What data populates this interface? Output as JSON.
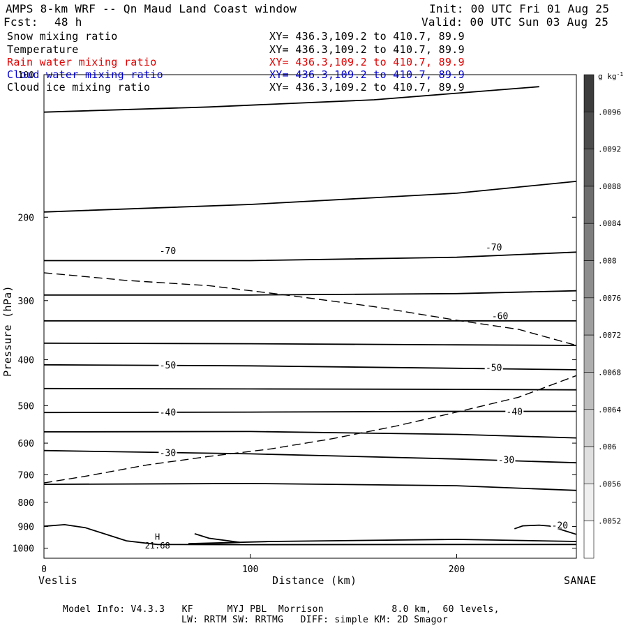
{
  "header": {
    "title": "AMPS 8-km WRF -- Qn Maud Land Coast window",
    "init": "Init: 00 UTC Fri 01 Aug 25",
    "fcst_label": "Fcst:",
    "fcst_value": "48 h",
    "valid": "Valid: 00 UTC Sun 03 Aug 25"
  },
  "fields": [
    {
      "name": "Snow mixing ratio",
      "xy": "XY= 436.3,109.2 to 410.7, 89.9",
      "color": "#000000"
    },
    {
      "name": "Temperature",
      "xy": "XY= 436.3,109.2 to 410.7, 89.9",
      "color": "#000000"
    },
    {
      "name": "Rain water mixing ratio",
      "xy": "XY= 436.3,109.2 to 410.7, 89.9",
      "color": "#e00000"
    },
    {
      "name": "Cloud water mixing ratio",
      "xy": "XY= 436.3,109.2 to 410.7, 89.9",
      "color": "#0000d0"
    },
    {
      "name": "Cloud ice mixing ratio",
      "xy": "XY= 436.3,109.2 to 410.7, 89.9",
      "color": "#000000"
    }
  ],
  "footer": {
    "line1": "Model Info: V4.3.3   KF      MYJ PBL  Morrison            8.0 km,  60 levels,",
    "line2": "LW: RRTM SW: RRTMG   DIFF: simple KM: 2D Smagor"
  },
  "chart_data": {
    "type": "line",
    "xlabel": "Distance (km)",
    "ylabel": "Pressure (hPa)",
    "xlim": [
      0,
      258
    ],
    "ylim": [
      1050,
      100
    ],
    "y_scale": "log",
    "x_ticks": [
      0,
      100,
      200
    ],
    "y_ticks": [
      100,
      200,
      300,
      400,
      500,
      600,
      700,
      800,
      900,
      1000
    ],
    "x_endpoints": {
      "left": "Veslis",
      "right": "SANAE"
    },
    "grid": false,
    "colorbar": {
      "unit": "g kg-1",
      "ticks": [
        ".0096",
        ".0092",
        ".0088",
        ".0084",
        ".008",
        ".0076",
        ".0072",
        ".0068",
        ".0064",
        ".006",
        ".0056",
        ".0052"
      ]
    },
    "isotherms": [
      {
        "label": "-70",
        "points": [
          [
            0,
            120
          ],
          [
            80,
            117
          ],
          [
            160,
            113
          ],
          [
            240,
            106
          ]
        ]
      },
      {
        "label": "",
        "points": [
          [
            0,
            195
          ],
          [
            100,
            188
          ],
          [
            200,
            178
          ],
          [
            258,
            168
          ]
        ]
      },
      {
        "label": "-70",
        "points": [
          [
            0,
            247
          ],
          [
            100,
            247
          ],
          [
            200,
            243
          ],
          [
            258,
            237
          ]
        ]
      },
      {
        "label": "",
        "points": [
          [
            0,
            292
          ],
          [
            100,
            292
          ],
          [
            200,
            290
          ],
          [
            258,
            286
          ]
        ]
      },
      {
        "label": "-60",
        "points": [
          [
            0,
            331
          ],
          [
            100,
            331
          ],
          [
            200,
            331
          ],
          [
            258,
            331
          ]
        ]
      },
      {
        "label": "",
        "points": [
          [
            0,
            369
          ],
          [
            100,
            370
          ],
          [
            200,
            372
          ],
          [
            258,
            373
          ]
        ]
      },
      {
        "label": "-50",
        "points": [
          [
            0,
            410
          ],
          [
            100,
            412
          ],
          [
            200,
            417
          ],
          [
            258,
            420
          ]
        ]
      },
      {
        "label": "",
        "points": [
          [
            0,
            460
          ],
          [
            100,
            461
          ],
          [
            200,
            462
          ],
          [
            258,
            463
          ]
        ]
      },
      {
        "label": "-40",
        "points": [
          [
            0,
            517
          ],
          [
            100,
            516
          ],
          [
            200,
            514
          ],
          [
            258,
            514
          ]
        ]
      },
      {
        "label": "",
        "points": [
          [
            0,
            568
          ],
          [
            100,
            567
          ],
          [
            200,
            575
          ],
          [
            258,
            585
          ]
        ]
      },
      {
        "label": "-30",
        "points": [
          [
            0,
            622
          ],
          [
            100,
            632
          ],
          [
            200,
            648
          ],
          [
            258,
            660
          ]
        ]
      },
      {
        "label": "",
        "points": [
          [
            0,
            733
          ],
          [
            100,
            730
          ],
          [
            200,
            738
          ],
          [
            258,
            755
          ]
        ]
      },
      {
        "label": "-20",
        "points": [
          [
            0,
            899
          ],
          [
            10,
            892
          ],
          [
            20,
            905
          ],
          [
            40,
            965
          ],
          [
            55,
            982
          ],
          [
            100,
            983
          ],
          [
            200,
            982
          ],
          [
            258,
            982
          ]
        ]
      },
      {
        "label": "",
        "points": [
          [
            73,
            932
          ],
          [
            80,
            953
          ],
          [
            95,
            972
          ],
          [
            85,
            976
          ],
          [
            70,
            978
          ],
          [
            110,
            968
          ],
          [
            200,
            958
          ],
          [
            258,
            968
          ]
        ]
      },
      {
        "label": "",
        "points": [
          [
            228,
            910
          ],
          [
            232,
            897
          ],
          [
            240,
            894
          ],
          [
            245,
            898
          ],
          [
            258,
            935
          ]
        ]
      }
    ],
    "dashed_lines": [
      {
        "points": [
          [
            0,
            262
          ],
          [
            40,
            272
          ],
          [
            80,
            279
          ],
          [
            120,
            293
          ],
          [
            160,
            309
          ],
          [
            200,
            330
          ],
          [
            230,
            345
          ],
          [
            258,
            373
          ]
        ]
      },
      {
        "points": [
          [
            0,
            728
          ],
          [
            20,
            705
          ],
          [
            50,
            667
          ],
          [
            80,
            640
          ],
          [
            110,
            617
          ],
          [
            140,
            587
          ],
          [
            170,
            553
          ],
          [
            200,
            516
          ],
          [
            230,
            480
          ],
          [
            258,
            432
          ]
        ]
      }
    ],
    "annotations": [
      {
        "text": "H",
        "x": 55,
        "p": 943
      },
      {
        "text": "21.68",
        "x": 55,
        "p": 985
      }
    ]
  }
}
